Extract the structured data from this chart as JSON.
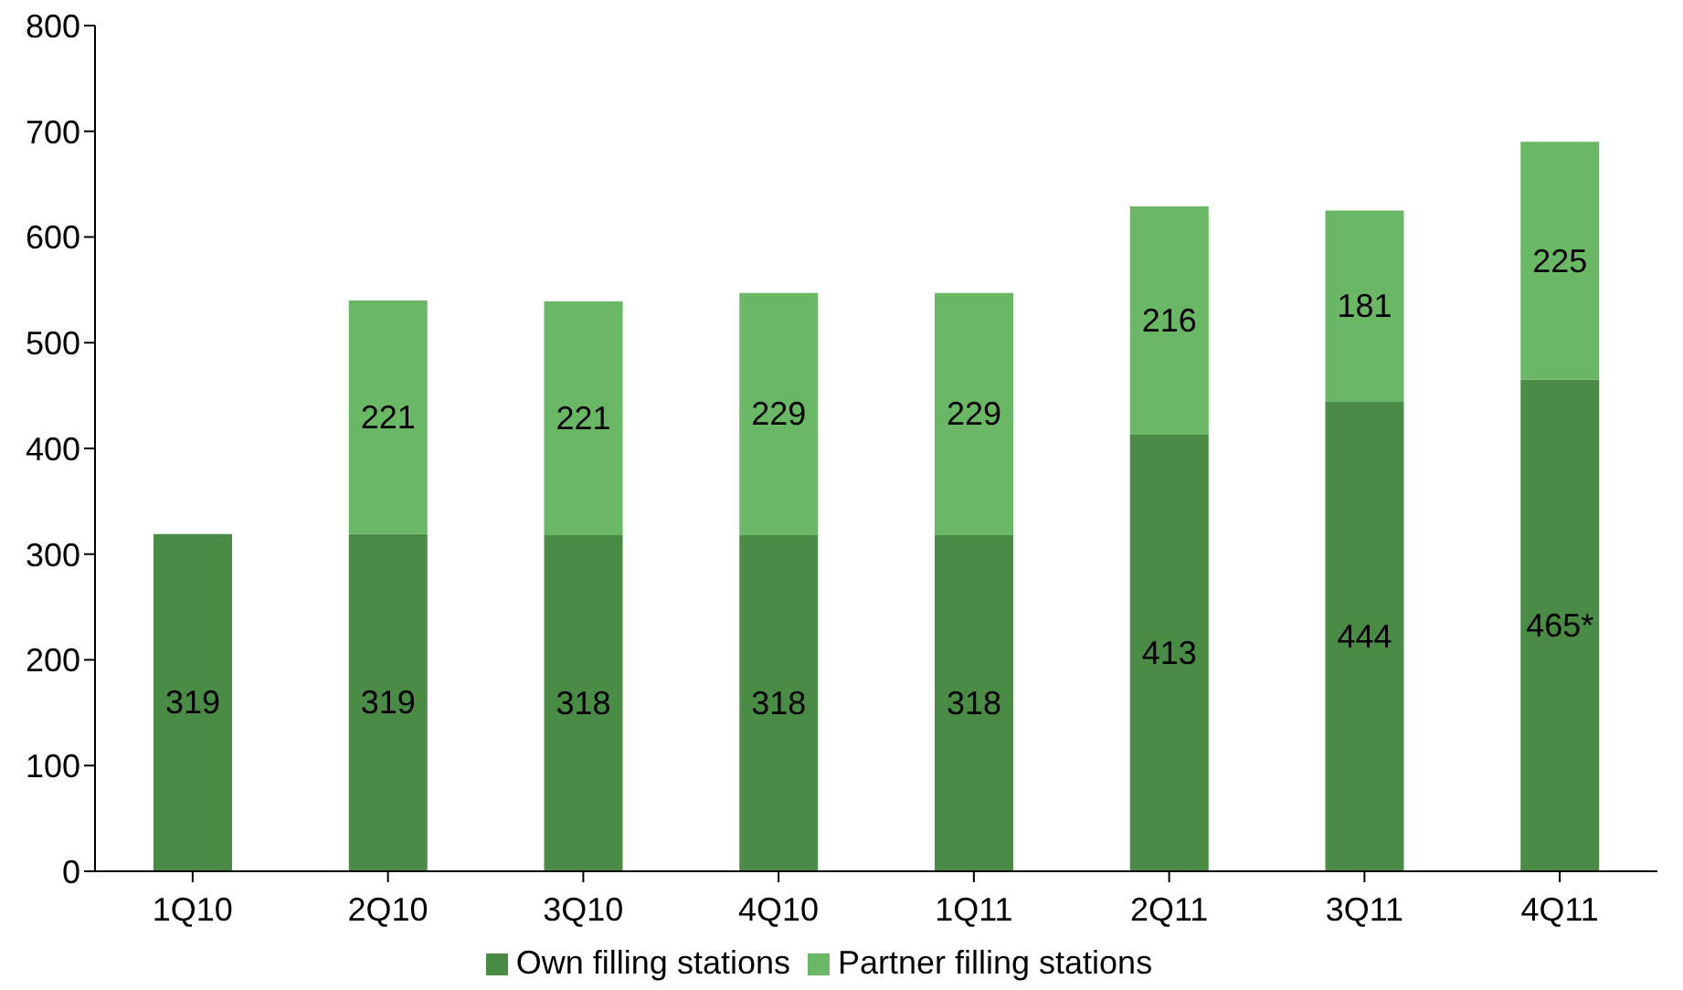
{
  "chart_data": {
    "type": "bar",
    "stacked": true,
    "categories": [
      "1Q10",
      "2Q10",
      "3Q10",
      "4Q10",
      "1Q11",
      "2Q11",
      "3Q11",
      "4Q11"
    ],
    "series": [
      {
        "name": "Own filling stations",
        "color": "#4a8c46",
        "values": [
          319,
          319,
          318,
          318,
          318,
          413,
          444,
          465
        ],
        "value_labels": [
          "319",
          "319",
          "318",
          "318",
          "318",
          "413",
          "444",
          "465*"
        ]
      },
      {
        "name": "Partner filling stations",
        "color": "#6ab865",
        "values": [
          null,
          221,
          221,
          229,
          229,
          216,
          181,
          225
        ],
        "value_labels": [
          null,
          "221",
          "221",
          "229",
          "229",
          "216",
          "181",
          "225"
        ]
      }
    ],
    "ylim": [
      0,
      800
    ],
    "yticks": [
      0,
      100,
      200,
      300,
      400,
      500,
      600,
      700,
      800
    ],
    "grid": false,
    "legend": "bottom"
  }
}
